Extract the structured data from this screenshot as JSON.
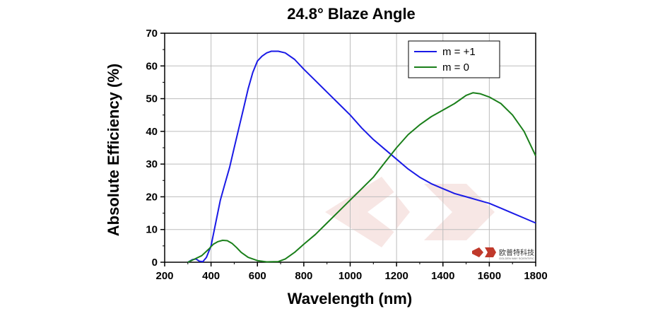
{
  "chart_data": {
    "type": "line",
    "title": "24.8° Blaze Angle",
    "xlabel": "Wavelength (nm)",
    "ylabel": "Absolute Efficiency (%)",
    "xlim": [
      200,
      1800
    ],
    "ylim": [
      0,
      70
    ],
    "xticks": [
      200,
      400,
      600,
      800,
      1000,
      1200,
      1400,
      1600,
      1800
    ],
    "yticks": [
      0,
      10,
      20,
      30,
      40,
      50,
      60,
      70
    ],
    "grid": true,
    "legend_position": "top-right",
    "series": [
      {
        "name": "m = +1",
        "color": "#1a1ae6",
        "points": [
          [
            300,
            0
          ],
          [
            320,
            0.8
          ],
          [
            335,
            1.0
          ],
          [
            350,
            0.3
          ],
          [
            365,
            0.2
          ],
          [
            380,
            1.5
          ],
          [
            400,
            5
          ],
          [
            420,
            12
          ],
          [
            440,
            19
          ],
          [
            460,
            24
          ],
          [
            480,
            29
          ],
          [
            500,
            35
          ],
          [
            520,
            41
          ],
          [
            540,
            47
          ],
          [
            560,
            53
          ],
          [
            580,
            58
          ],
          [
            600,
            61.5
          ],
          [
            620,
            63
          ],
          [
            640,
            64
          ],
          [
            660,
            64.5
          ],
          [
            690,
            64.5
          ],
          [
            720,
            64
          ],
          [
            760,
            62
          ],
          [
            800,
            59
          ],
          [
            850,
            55.5
          ],
          [
            900,
            52
          ],
          [
            950,
            48.5
          ],
          [
            1000,
            45
          ],
          [
            1050,
            41
          ],
          [
            1100,
            37.5
          ],
          [
            1150,
            34.5
          ],
          [
            1200,
            31.5
          ],
          [
            1250,
            28.5
          ],
          [
            1300,
            26
          ],
          [
            1350,
            24
          ],
          [
            1400,
            22.5
          ],
          [
            1450,
            21
          ],
          [
            1500,
            20
          ],
          [
            1550,
            19
          ],
          [
            1600,
            18
          ],
          [
            1650,
            16.5
          ],
          [
            1700,
            15
          ],
          [
            1750,
            13.5
          ],
          [
            1800,
            12
          ]
        ]
      },
      {
        "name": "m = 0",
        "color": "#1a7f1a",
        "points": [
          [
            300,
            0
          ],
          [
            330,
            1
          ],
          [
            360,
            2
          ],
          [
            390,
            4
          ],
          [
            410,
            5.5
          ],
          [
            430,
            6.3
          ],
          [
            450,
            6.7
          ],
          [
            470,
            6.6
          ],
          [
            490,
            5.8
          ],
          [
            510,
            4.5
          ],
          [
            530,
            3
          ],
          [
            560,
            1.5
          ],
          [
            600,
            0.5
          ],
          [
            640,
            0.1
          ],
          [
            690,
            0.2
          ],
          [
            720,
            1
          ],
          [
            760,
            3
          ],
          [
            800,
            5.5
          ],
          [
            850,
            8.5
          ],
          [
            900,
            12
          ],
          [
            950,
            15.5
          ],
          [
            1000,
            19
          ],
          [
            1050,
            22.5
          ],
          [
            1100,
            26
          ],
          [
            1150,
            30.5
          ],
          [
            1200,
            35
          ],
          [
            1250,
            39
          ],
          [
            1300,
            42
          ],
          [
            1350,
            44.5
          ],
          [
            1400,
            46.5
          ],
          [
            1450,
            48.5
          ],
          [
            1500,
            51
          ],
          [
            1530,
            51.8
          ],
          [
            1560,
            51.5
          ],
          [
            1600,
            50.5
          ],
          [
            1650,
            48.5
          ],
          [
            1700,
            45
          ],
          [
            1750,
            40
          ],
          [
            1800,
            32.5
          ]
        ]
      }
    ]
  },
  "watermark": {
    "cn_text": "欧普特科技",
    "en_text": "GOLDEN WAY SCIENTIFIC",
    "color": "#c0392b"
  }
}
